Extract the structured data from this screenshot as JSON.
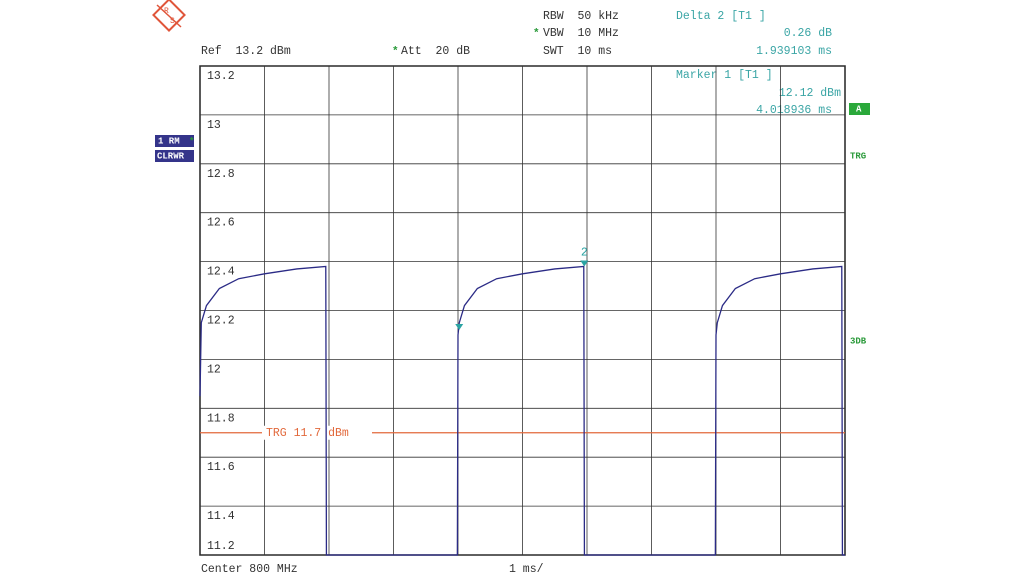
{
  "chart_data": {
    "type": "line",
    "xlim": [
      0,
      10
    ],
    "ylim": [
      11.2,
      13.2
    ],
    "yticks": [
      11.2,
      11.4,
      11.6,
      11.8,
      12,
      12.2,
      12.4,
      12.6,
      12.8,
      13,
      13.2
    ],
    "grid": true,
    "series": [
      {
        "color": "#2b2b86",
        "x": [
          0,
          0.02,
          0.1,
          0.3,
          0.6,
          1.0,
          1.5,
          1.95,
          1.96,
          3.99,
          4.0,
          4.02,
          4.1,
          4.3,
          4.6,
          5.0,
          5.5,
          5.95,
          5.96,
          7.99,
          8.0,
          8.02,
          8.1,
          8.3,
          8.6,
          9.0,
          9.5,
          9.95,
          9.96,
          10
        ],
        "values": [
          11.85,
          12.15,
          12.22,
          12.29,
          12.33,
          12.35,
          12.37,
          12.38,
          11.2,
          11.2,
          12.1,
          12.15,
          12.22,
          12.29,
          12.33,
          12.35,
          12.37,
          12.38,
          11.2,
          11.2,
          12.1,
          12.15,
          12.22,
          12.29,
          12.33,
          12.35,
          12.37,
          12.38,
          11.2,
          11.2
        ]
      }
    ],
    "markers": [
      {
        "x": 4.018936,
        "value": 12.12,
        "color": "#2aa3a3"
      },
      {
        "x": 5.958,
        "value": 12.38,
        "label": "2",
        "color": "#2aa3a3"
      }
    ],
    "trigger": {
      "value": 11.7,
      "label": "TRG 11.7 dBm",
      "color": "#e2693c"
    }
  },
  "instrument": {
    "logo": [
      "R",
      "S"
    ],
    "ref": "Ref  13.2 dBm",
    "att_star": "*",
    "att": "Att  20 dB",
    "rbw": "RBW  50 kHz",
    "vbw_star": "*",
    "vbw": "VBW  10 MHz",
    "swt": "SWT  10 ms",
    "delta_title": "Delta 2 [T1 ]",
    "delta_level": "0.26 dB",
    "delta_time": "1.939103 ms",
    "marker_title": "Marker 1 [T1 ]",
    "marker_level": "12.12 dBm",
    "marker_time": "4.018936 ms",
    "trace_mode": "1 RM",
    "trace_star": "*",
    "trace_detector": "CLRWR",
    "side_a": "A",
    "side_trg": "TRG",
    "side_3db": "3DB",
    "center": "Center 800 MHz",
    "span": "1 ms/"
  }
}
